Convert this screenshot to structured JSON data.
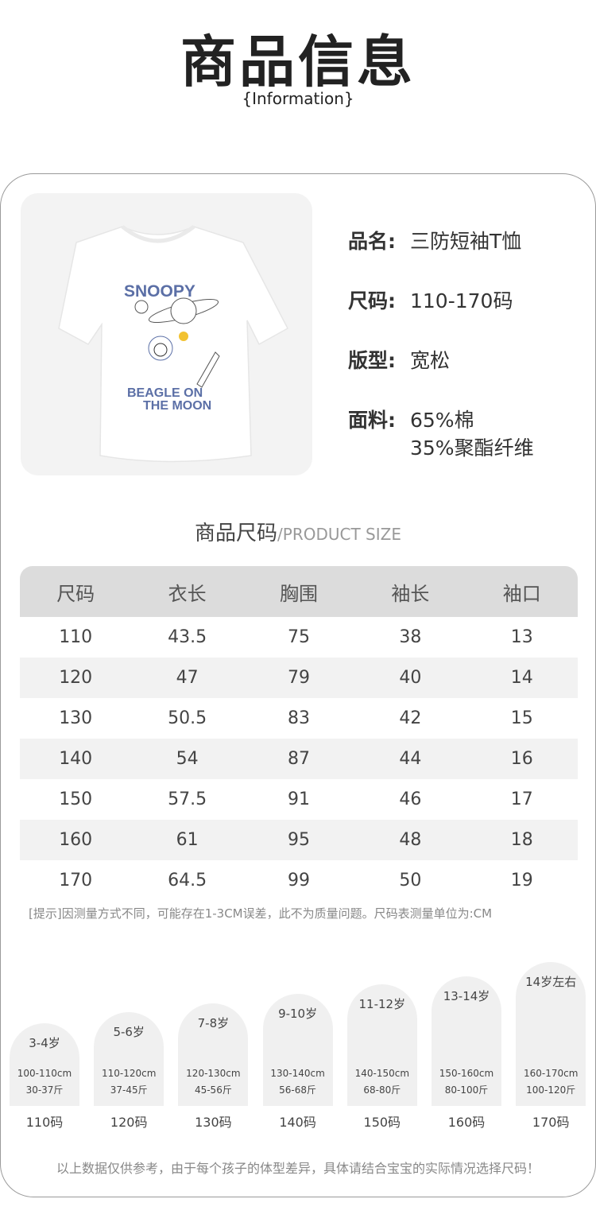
{
  "header": {
    "title": "商品信息",
    "subtitle": "{Information}"
  },
  "product": {
    "print_text": [
      "SNOOPY",
      "BEAGLE ON",
      "THE MOON"
    ],
    "print_color": "#5b6fa6",
    "fields": [
      {
        "label": "品名:",
        "value": "三防短袖T恤"
      },
      {
        "label": "尺码:",
        "value": "110-170码"
      },
      {
        "label": "版型:",
        "value": "宽松"
      },
      {
        "label": "面料:",
        "value": "65%棉",
        "value2": "35%聚酯纤维"
      }
    ]
  },
  "size_section": {
    "title": "商品尺码",
    "title_en": "/PRODUCT SIZE"
  },
  "size_table": {
    "headers": [
      "尺码",
      "衣长",
      "胸围",
      "袖长",
      "袖口"
    ],
    "rows": [
      [
        "110",
        "43.5",
        "75",
        "38",
        "13"
      ],
      [
        "120",
        "47",
        "79",
        "40",
        "14"
      ],
      [
        "130",
        "50.5",
        "83",
        "42",
        "15"
      ],
      [
        "140",
        "54",
        "87",
        "44",
        "16"
      ],
      [
        "150",
        "57.5",
        "91",
        "46",
        "17"
      ],
      [
        "160",
        "61",
        "95",
        "48",
        "18"
      ],
      [
        "170",
        "64.5",
        "99",
        "50",
        "19"
      ]
    ]
  },
  "tip": "[提示]因测量方式不同，可能存在1-3CM误差，此不为质量问题。尺码表测量单位为:CM",
  "age_guide": [
    {
      "age": "3-4岁",
      "height": "100-110cm",
      "weight": "30-37斤",
      "code": "110码"
    },
    {
      "age": "5-6岁",
      "height": "110-120cm",
      "weight": "37-45斤",
      "code": "120码"
    },
    {
      "age": "7-8岁",
      "height": "120-130cm",
      "weight": "45-56斤",
      "code": "130码"
    },
    {
      "age": "9-10岁",
      "height": "130-140cm",
      "weight": "56-68斤",
      "code": "140码"
    },
    {
      "age": "11-12岁",
      "height": "140-150cm",
      "weight": "68-80斤",
      "code": "150码"
    },
    {
      "age": "13-14岁",
      "height": "150-160cm",
      "weight": "80-100斤",
      "code": "160码"
    },
    {
      "age": "14岁左右",
      "height": "160-170cm",
      "weight": "100-120斤",
      "code": "170码"
    }
  ],
  "footer": "以上数据仅供参考，由于每个孩子的体型差异，具体请结合宝宝的实际情况选择尺码！"
}
